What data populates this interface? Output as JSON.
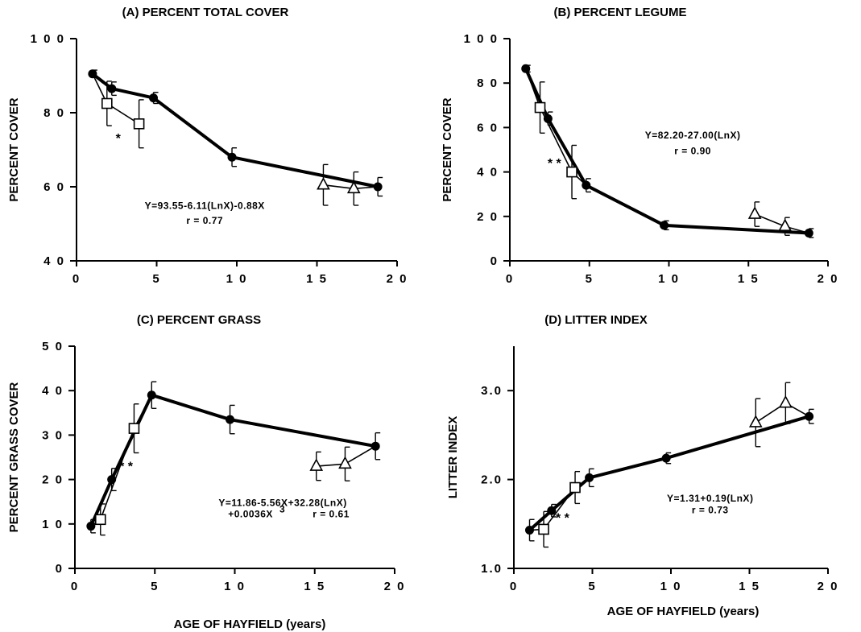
{
  "figure": {
    "shared_xlabel": "AGE OF HAYFIELD (years)"
  },
  "chart_data": [
    {
      "id": "A",
      "type": "line",
      "title": "(A) PERCENT TOTAL COVER",
      "ylabel": "PERCENT COVER",
      "xlabel": "",
      "xlim": [
        0,
        20
      ],
      "ylim": [
        40,
        100
      ],
      "xticks": [
        0,
        5,
        10,
        15,
        20
      ],
      "xtick_labels": [
        "0",
        "5",
        "1 0",
        "1 5",
        "2 0"
      ],
      "yticks": [
        40,
        60,
        80,
        100
      ],
      "ytick_labels": [
        "4 0",
        "6 0",
        "8 0",
        "1 0 0"
      ],
      "series": [
        {
          "marker": "filled-circle",
          "line": "thick",
          "points": [
            {
              "x": 1,
              "y": 90.5,
              "err": 1
            },
            {
              "x": 2.2,
              "y": 86.5,
              "err": 1.8
            },
            {
              "x": 4.8,
              "y": 84,
              "err": 1.5
            },
            {
              "x": 9.7,
              "y": 68,
              "err": 2.5
            },
            {
              "x": 18.8,
              "y": 60,
              "err": 2.5
            }
          ]
        },
        {
          "marker": "open-square",
          "line": "thin",
          "points": [
            {
              "x": 1,
              "y": 90.5,
              "err": 0
            },
            {
              "x": 1.9,
              "y": 82.5,
              "err": 6
            },
            {
              "x": 3.9,
              "y": 77,
              "err": 6.5
            }
          ]
        },
        {
          "marker": "open-triangle",
          "line": "thin",
          "points": [
            {
              "x": 15.4,
              "y": 60.5,
              "err": 5.5
            },
            {
              "x": 17.3,
              "y": 59.5,
              "err": 4.5
            },
            {
              "x": 18.8,
              "y": 60,
              "err": 0
            }
          ]
        }
      ],
      "annotations": {
        "equation_line1": "Y=93.55-6.11(LnX)-0.88X",
        "equation_line2": "r = 0.77",
        "eq_x": 8,
        "eq_y1": 54,
        "eq_y2": 50,
        "significance": "*",
        "sig_x": 2.6,
        "sig_y": 72
      }
    },
    {
      "id": "B",
      "type": "line",
      "title": "(B) PERCENT LEGUME",
      "ylabel": "PERCENT COVER",
      "xlabel": "",
      "xlim": [
        0,
        20
      ],
      "ylim": [
        0,
        100
      ],
      "xticks": [
        0,
        5,
        10,
        15,
        20
      ],
      "xtick_labels": [
        "0",
        "5",
        "1 0",
        "1 5",
        "2 0"
      ],
      "yticks": [
        0,
        20,
        40,
        60,
        80,
        100
      ],
      "ytick_labels": [
        "0",
        "2 0",
        "4 0",
        "6 0",
        "8 0",
        "1 0 0"
      ],
      "series": [
        {
          "marker": "filled-circle",
          "line": "thick",
          "points": [
            {
              "x": 1,
              "y": 86.5,
              "err": 1.5
            },
            {
              "x": 2.4,
              "y": 64,
              "err": 3
            },
            {
              "x": 4.8,
              "y": 34,
              "err": 3
            },
            {
              "x": 9.7,
              "y": 16,
              "err": 2
            },
            {
              "x": 18.8,
              "y": 12.5,
              "err": 2
            }
          ]
        },
        {
          "marker": "open-square",
          "line": "thin",
          "points": [
            {
              "x": 1,
              "y": 86.5,
              "err": 0
            },
            {
              "x": 1.9,
              "y": 69,
              "err": 11.5
            },
            {
              "x": 3.9,
              "y": 40,
              "err": 12
            },
            {
              "x": 4.8,
              "y": 34,
              "err": 0
            }
          ]
        },
        {
          "marker": "open-triangle",
          "line": "thin",
          "points": [
            {
              "x": 15.4,
              "y": 21,
              "err": 5.5
            },
            {
              "x": 17.3,
              "y": 15.5,
              "err": 4
            },
            {
              "x": 18.8,
              "y": 12.5,
              "err": 0
            }
          ]
        }
      ],
      "annotations": {
        "equation_line1": "Y=82.20-27.00(LnX)",
        "equation_line2": "r = 0.90",
        "eq_x": 11.5,
        "eq_y1": 55,
        "eq_y2": 48,
        "significance": "* *",
        "sig_x": 2.8,
        "sig_y": 42
      }
    },
    {
      "id": "C",
      "type": "line",
      "title": "(C) PERCENT GRASS",
      "ylabel": "PERCENT GRASS COVER",
      "xlabel": "",
      "xlim": [
        0,
        20
      ],
      "ylim": [
        0,
        50
      ],
      "xticks": [
        0,
        5,
        10,
        15,
        20
      ],
      "xtick_labels": [
        "0",
        "5",
        "1 0",
        "1 5",
        "2 0"
      ],
      "yticks": [
        0,
        10,
        20,
        30,
        40,
        50
      ],
      "ytick_labels": [
        "0",
        "1 0",
        "2 0",
        "3 0",
        "4 0",
        "5 0"
      ],
      "series": [
        {
          "marker": "filled-circle",
          "line": "thick",
          "points": [
            {
              "x": 1,
              "y": 9.5,
              "err": 1.5
            },
            {
              "x": 2.3,
              "y": 20,
              "err": 2.5
            },
            {
              "x": 4.8,
              "y": 39,
              "err": 3
            },
            {
              "x": 9.7,
              "y": 33.5,
              "err": 3.2
            },
            {
              "x": 18.8,
              "y": 27.5,
              "err": 3
            }
          ]
        },
        {
          "marker": "open-square",
          "line": "thin",
          "points": [
            {
              "x": 1,
              "y": 9.5,
              "err": 0
            },
            {
              "x": 1.6,
              "y": 11,
              "err": 3.5
            },
            {
              "x": 3.7,
              "y": 31.5,
              "err": 5.5
            },
            {
              "x": 4.8,
              "y": 39,
              "err": 0
            }
          ]
        },
        {
          "marker": "open-triangle",
          "line": "thin",
          "points": [
            {
              "x": 15.1,
              "y": 23,
              "err": 3.2
            },
            {
              "x": 16.9,
              "y": 23.5,
              "err": 3.8
            },
            {
              "x": 18.8,
              "y": 27.5,
              "err": 0
            }
          ]
        }
      ],
      "annotations": {
        "equation_line1": "Y=11.86-5.56X+32.28(LnX)",
        "equation_line2": "+0.0036X",
        "equation_sup": "3",
        "equation_line3": "r = 0.61",
        "eq_x": 13,
        "eq_y1": 14,
        "eq_y2": 11.5,
        "significance": "* *",
        "sig_x": 3.2,
        "sig_y": 22
      }
    },
    {
      "id": "D",
      "type": "line",
      "title": "(D) LITTER INDEX",
      "ylabel": "LITTER INDEX",
      "xlabel": "",
      "xlim": [
        0,
        20
      ],
      "ylim": [
        1.0,
        3.5
      ],
      "xticks": [
        0,
        5,
        10,
        15,
        20
      ],
      "xtick_labels": [
        "0",
        "5",
        "1 0",
        "1 5",
        "2 0"
      ],
      "yticks": [
        1.0,
        2.0,
        3.0
      ],
      "ytick_labels": [
        "1.0",
        "2.0",
        "3.0"
      ],
      "series": [
        {
          "marker": "filled-circle",
          "line": "thick",
          "points": [
            {
              "x": 1,
              "y": 1.43,
              "err": 0.12
            },
            {
              "x": 2.4,
              "y": 1.65,
              "err": 0.07
            },
            {
              "x": 4.8,
              "y": 2.02,
              "err": 0.1
            },
            {
              "x": 9.7,
              "y": 2.24,
              "err": 0.06
            },
            {
              "x": 18.8,
              "y": 2.71,
              "err": 0.08
            }
          ]
        },
        {
          "marker": "open-square",
          "line": "thin",
          "points": [
            {
              "x": 1,
              "y": 1.43,
              "err": 0
            },
            {
              "x": 1.9,
              "y": 1.44,
              "err": 0.2
            },
            {
              "x": 3.9,
              "y": 1.91,
              "err": 0.18
            },
            {
              "x": 4.8,
              "y": 2.02,
              "err": 0
            }
          ]
        },
        {
          "marker": "open-triangle",
          "line": "thin",
          "points": [
            {
              "x": 15.4,
              "y": 2.64,
              "err": 0.27
            },
            {
              "x": 17.3,
              "y": 2.86,
              "err": 0.23
            },
            {
              "x": 18.8,
              "y": 2.71,
              "err": 0
            }
          ]
        }
      ],
      "annotations": {
        "equation_line1": "Y=1.31+0.19(LnX)",
        "equation_line2": "r = 0.73",
        "eq_x": 12.5,
        "eq_y1": 1.75,
        "eq_y2": 1.62,
        "significance": "* *",
        "sig_x": 3.1,
        "sig_y": 1.52
      }
    }
  ]
}
